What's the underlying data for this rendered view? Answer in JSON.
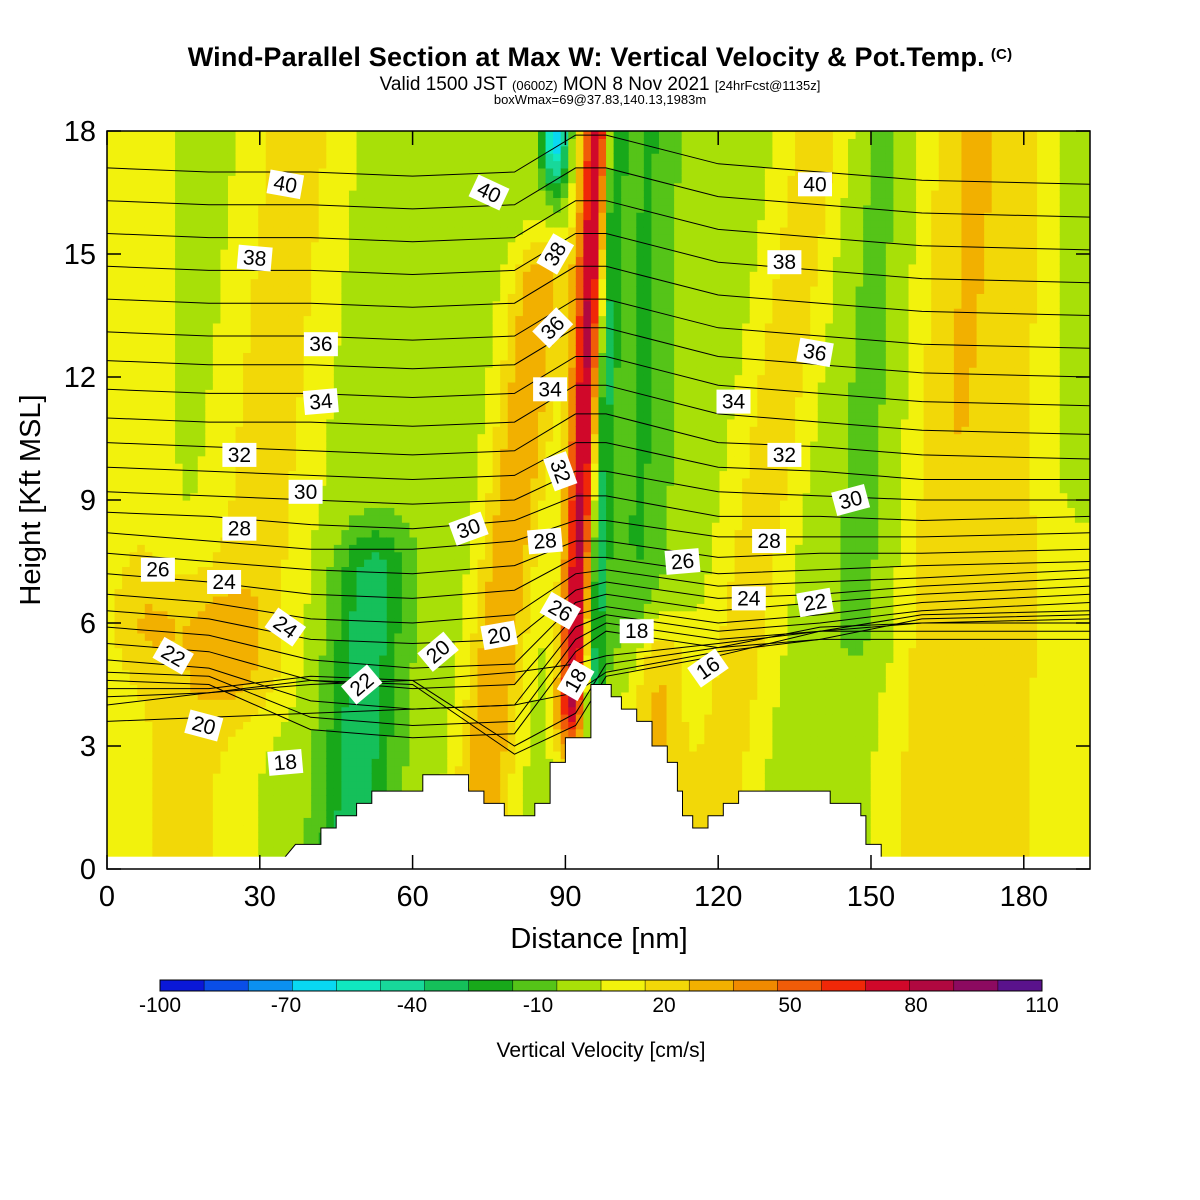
{
  "header": {
    "title": "Wind-Parallel Section at Max W: Vertical Velocity & Pot.Temp.",
    "copyright": "(C)",
    "valid_prefix": "Valid 1500 JST",
    "valid_utc": "(0600Z)",
    "valid_date": "MON 8 Nov 2021",
    "forecast": "[24hrFcst@1135z]",
    "boxmax": "boxWmax=69@37.83,140.13,1983m"
  },
  "colorbar": {
    "title": "Vertical Velocity [cm/s]",
    "tick_labels": [
      "-100",
      "-70",
      "-40",
      "-10",
      "20",
      "50",
      "80",
      "110"
    ],
    "colors": [
      "#0a18d8",
      "#0a4ee8",
      "#0b90f0",
      "#09d8f2",
      "#10e8c0",
      "#18d89a",
      "#15c05a",
      "#18a81a",
      "#55c418",
      "#a8e008",
      "#f2f20c",
      "#f2d808",
      "#f2b000",
      "#f08a00",
      "#f05c08",
      "#f02808",
      "#d0082a",
      "#b00840",
      "#8c0a60",
      "#5a128c"
    ]
  },
  "chart_data": {
    "type": "heatmap",
    "title": "Wind-Parallel Section at Max W: Vertical Velocity & Pot.Temp.",
    "xlabel": "Distance [nm]",
    "ylabel": "Height [Kft MSL]",
    "xlim": [
      0,
      193
    ],
    "ylim": [
      0,
      18
    ],
    "x_ticks": [
      0,
      30,
      60,
      90,
      120,
      150,
      180
    ],
    "y_ticks": [
      0,
      3,
      6,
      9,
      12,
      15,
      18
    ],
    "grid": false,
    "color_field": "Vertical Velocity [cm/s]",
    "color_range": [
      -110,
      110
    ],
    "contour_field": "Pot.Temp.",
    "background_w": -5,
    "w_features": [
      {
        "x": 91.5,
        "y0": 4.2,
        "y1": 18,
        "slope": 0.35,
        "amp": 85,
        "sx": 2.2
      },
      {
        "x": 95.3,
        "y0": 4.2,
        "y1": 18,
        "slope": 0.3,
        "amp": -45,
        "sx": 1.5
      },
      {
        "x": 88,
        "y0": 18,
        "y1": 18,
        "slope": 0,
        "amp": -70,
        "sx": 1.8
      },
      {
        "x": 88,
        "y0": 0,
        "y1": 1,
        "slope": 0,
        "amp": -1,
        "sx": 1
      },
      {
        "x": 72,
        "y0": 0,
        "y1": 14,
        "slope": 0.9,
        "amp": 38,
        "sx": 4
      },
      {
        "x": 48,
        "y0": 0.5,
        "y1": 7,
        "slope": 0.6,
        "amp": -35,
        "sx": 5
      },
      {
        "x": 104,
        "y0": 6,
        "y1": 18,
        "slope": 0.2,
        "amp": -18,
        "sx": 4
      },
      {
        "x": 118,
        "y0": 0,
        "y1": 18,
        "slope": 1.2,
        "amp": 22,
        "sx": 5
      },
      {
        "x": 27,
        "y0": 5,
        "y1": 18,
        "slope": 0.8,
        "amp": 22,
        "sx": 7
      },
      {
        "x": 15,
        "y0": 0,
        "y1": 6,
        "slope": 0,
        "amp": 20,
        "sx": 9
      },
      {
        "x": 175,
        "y0": 0,
        "y1": 18,
        "slope": 0.2,
        "amp": 18,
        "sx": 12
      },
      {
        "x": 160,
        "y0": 0,
        "y1": 18,
        "slope": 0.5,
        "amp": 15,
        "sx": 6
      },
      {
        "x": 148,
        "y0": 6,
        "y1": 18,
        "slope": 0.4,
        "amp": -10,
        "sx": 5
      },
      {
        "x": 190,
        "y0": 10,
        "y1": 18,
        "slope": 0,
        "amp": -12,
        "sx": 4
      },
      {
        "x": 6,
        "y0": 6,
        "y1": 18,
        "slope": 0,
        "amp": 14,
        "sx": 5
      },
      {
        "x": 108,
        "y0": 0,
        "y1": 5,
        "slope": 0,
        "amp": 30,
        "sx": 4
      }
    ],
    "terrain_profile": [
      [
        35,
        0.3
      ],
      [
        37,
        0.6
      ],
      [
        42,
        0.6
      ],
      [
        42,
        1.0
      ],
      [
        45,
        1.0
      ],
      [
        45,
        1.3
      ],
      [
        49,
        1.3
      ],
      [
        49,
        1.6
      ],
      [
        52,
        1.6
      ],
      [
        52,
        1.9
      ],
      [
        62,
        1.9
      ],
      [
        62,
        2.3
      ],
      [
        71,
        2.3
      ],
      [
        71,
        1.9
      ],
      [
        74,
        1.9
      ],
      [
        74,
        1.6
      ],
      [
        78,
        1.6
      ],
      [
        78,
        1.3
      ],
      [
        84,
        1.3
      ],
      [
        84,
        1.6
      ],
      [
        87,
        1.6
      ],
      [
        87,
        2.6
      ],
      [
        90,
        2.6
      ],
      [
        90,
        3.2
      ],
      [
        95,
        3.2
      ],
      [
        95,
        4.5
      ],
      [
        99,
        4.5
      ],
      [
        99,
        4.2
      ],
      [
        101,
        4.2
      ],
      [
        101,
        3.9
      ],
      [
        104,
        3.9
      ],
      [
        104,
        3.6
      ],
      [
        107,
        3.6
      ],
      [
        107,
        3.0
      ],
      [
        110,
        3.0
      ],
      [
        110,
        2.6
      ],
      [
        112,
        2.6
      ],
      [
        112,
        1.9
      ],
      [
        113,
        1.9
      ],
      [
        113,
        1.3
      ],
      [
        115,
        1.3
      ],
      [
        115,
        1.0
      ],
      [
        118,
        1.0
      ],
      [
        118,
        1.3
      ],
      [
        121,
        1.3
      ],
      [
        121,
        1.6
      ],
      [
        124,
        1.6
      ],
      [
        124,
        1.9
      ],
      [
        142,
        1.9
      ],
      [
        142,
        1.6
      ],
      [
        148,
        1.6
      ],
      [
        148,
        1.3
      ],
      [
        149,
        1.3
      ],
      [
        149,
        0.6
      ],
      [
        152,
        0.6
      ],
      [
        152,
        0.3
      ]
    ],
    "theta_levels": [
      16,
      17,
      18,
      19,
      20,
      21,
      22,
      23,
      24,
      25,
      26,
      27,
      28,
      29,
      30,
      31,
      32,
      33,
      34,
      35,
      36,
      37,
      38,
      39,
      40,
      41,
      42
    ],
    "theta_sparse_heights": {
      "16": [
        3.6,
        3.7,
        3.8,
        3.9,
        4.0,
        4.3,
        4.8,
        5.3,
        5.6,
        5.6,
        5.6
      ],
      "17": [
        4.0,
        4.3,
        4.5,
        4.6,
        4.8,
        5.0,
        5.2,
        5.5,
        5.8,
        5.8,
        5.8
      ],
      "18": [
        4.2,
        4.3,
        4.6,
        4.5,
        2.8,
        3.5,
        4.7,
        5.2,
        5.8,
        6.0,
        6.0
      ],
      "19": [
        4.4,
        4.4,
        4.7,
        4.6,
        3.0,
        3.8,
        5.0,
        5.4,
        5.9,
        6.0,
        6.1
      ],
      "20": [
        4.6,
        4.5,
        3.4,
        3.2,
        3.3,
        5.3,
        5.8,
        5.4,
        5.6,
        6.1,
        6.2
      ],
      "21": [
        4.8,
        4.7,
        3.7,
        3.5,
        3.6,
        5.6,
        6.0,
        5.6,
        5.8,
        6.2,
        6.3
      ],
      "22": [
        5.1,
        4.9,
        4.1,
        3.9,
        4.0,
        5.9,
        6.2,
        5.8,
        6.0,
        6.3,
        6.5
      ],
      "23": [
        5.5,
        5.3,
        4.6,
        4.4,
        4.5,
        6.2,
        6.4,
        6.0,
        6.2,
        6.5,
        6.7
      ],
      "24": [
        5.9,
        5.7,
        5.1,
        4.9,
        5.0,
        6.5,
        6.7,
        6.3,
        6.5,
        6.7,
        6.9
      ],
      "25": [
        6.3,
        6.1,
        5.6,
        5.5,
        5.6,
        6.8,
        7.0,
        6.6,
        6.7,
        6.9,
        7.1
      ],
      "26": [
        6.7,
        6.5,
        6.1,
        6.0,
        6.2,
        7.2,
        7.3,
        6.9,
        7.0,
        7.1,
        7.3
      ],
      "27": [
        7.2,
        7.0,
        6.7,
        6.6,
        6.8,
        7.6,
        7.6,
        7.2,
        7.3,
        7.4,
        7.5
      ],
      "28": [
        7.7,
        7.5,
        7.3,
        7.2,
        7.4,
        8.0,
        8.0,
        7.6,
        7.7,
        7.7,
        7.8
      ],
      "29": [
        8.2,
        8.0,
        7.8,
        7.8,
        8.0,
        8.5,
        8.5,
        8.1,
        8.1,
        8.1,
        8.2
      ],
      "30": [
        8.7,
        8.6,
        8.4,
        8.3,
        8.5,
        9.1,
        9.1,
        8.6,
        8.6,
        8.5,
        8.6
      ],
      "31": [
        9.2,
        9.1,
        9.0,
        8.9,
        9.0,
        9.7,
        9.7,
        9.2,
        9.1,
        9.0,
        9.0
      ],
      "32": [
        9.8,
        9.7,
        9.6,
        9.5,
        9.6,
        10.4,
        10.4,
        9.8,
        9.7,
        9.5,
        9.5
      ],
      "33": [
        10.4,
        10.3,
        10.2,
        10.1,
        10.2,
        11.1,
        11.1,
        10.4,
        10.3,
        10.1,
        10.0
      ],
      "34": [
        11.0,
        10.9,
        10.9,
        10.8,
        10.9,
        11.8,
        11.8,
        11.1,
        10.9,
        10.7,
        10.6
      ],
      "35": [
        11.7,
        11.6,
        11.6,
        11.5,
        11.6,
        12.5,
        12.5,
        11.8,
        11.6,
        11.4,
        11.3
      ],
      "36": [
        12.4,
        12.3,
        12.3,
        12.2,
        12.3,
        13.2,
        13.2,
        12.5,
        12.3,
        12.1,
        12.0
      ],
      "37": [
        13.1,
        13.0,
        13.0,
        12.9,
        13.0,
        13.9,
        13.9,
        13.2,
        13.0,
        12.8,
        12.7
      ],
      "38": [
        13.9,
        13.8,
        13.8,
        13.7,
        13.8,
        14.7,
        14.7,
        14.0,
        13.8,
        13.6,
        13.5
      ],
      "39": [
        14.7,
        14.6,
        14.6,
        14.5,
        14.6,
        15.5,
        15.5,
        14.8,
        14.6,
        14.4,
        14.3
      ],
      "40": [
        15.5,
        15.4,
        15.4,
        15.3,
        15.4,
        16.3,
        16.3,
        15.6,
        15.4,
        15.2,
        15.1
      ],
      "41": [
        16.3,
        16.2,
        16.2,
        16.1,
        16.2,
        17.1,
        17.1,
        16.4,
        16.2,
        16.0,
        15.9
      ],
      "42": [
        17.1,
        17.0,
        17.0,
        16.9,
        17.0,
        17.9,
        17.9,
        17.2,
        17.0,
        16.8,
        16.7
      ]
    },
    "theta_sparse_x": [
      0,
      20,
      40,
      60,
      80,
      92,
      98,
      120,
      140,
      160,
      193
    ],
    "contour_labels": [
      {
        "text": "40",
        "x": 35,
        "y": 16.7,
        "rot": 10
      },
      {
        "text": "40",
        "x": 75,
        "y": 16.5,
        "rot": 25
      },
      {
        "text": "40",
        "x": 139,
        "y": 16.7,
        "rot": 0
      },
      {
        "text": "38",
        "x": 29,
        "y": 14.9,
        "rot": 5
      },
      {
        "text": "38",
        "x": 88,
        "y": 15.0,
        "rot": -60
      },
      {
        "text": "38",
        "x": 133,
        "y": 14.8,
        "rot": 0
      },
      {
        "text": "36",
        "x": 42,
        "y": 12.8,
        "rot": 0
      },
      {
        "text": "36",
        "x": 87.5,
        "y": 13.2,
        "rot": -45
      },
      {
        "text": "36",
        "x": 139,
        "y": 12.6,
        "rot": 10
      },
      {
        "text": "34",
        "x": 42,
        "y": 11.4,
        "rot": -5
      },
      {
        "text": "34",
        "x": 87,
        "y": 11.7,
        "rot": 0
      },
      {
        "text": "34",
        "x": 123,
        "y": 11.4,
        "rot": 0
      },
      {
        "text": "32",
        "x": 26,
        "y": 10.1,
        "rot": 0
      },
      {
        "text": "32",
        "x": 89,
        "y": 9.7,
        "rot": 70
      },
      {
        "text": "32",
        "x": 133,
        "y": 10.1,
        "rot": 0
      },
      {
        "text": "30",
        "x": 39,
        "y": 9.2,
        "rot": 0
      },
      {
        "text": "30",
        "x": 71,
        "y": 8.3,
        "rot": -20
      },
      {
        "text": "30",
        "x": 146,
        "y": 9.0,
        "rot": -15
      },
      {
        "text": "28",
        "x": 26,
        "y": 8.3,
        "rot": 0
      },
      {
        "text": "28",
        "x": 86,
        "y": 8.0,
        "rot": -5
      },
      {
        "text": "28",
        "x": 130,
        "y": 8.0,
        "rot": 0
      },
      {
        "text": "26",
        "x": 10,
        "y": 7.3,
        "rot": 0
      },
      {
        "text": "26",
        "x": 89,
        "y": 6.3,
        "rot": 30
      },
      {
        "text": "26",
        "x": 113,
        "y": 7.5,
        "rot": -5
      },
      {
        "text": "24",
        "x": 23,
        "y": 7.0,
        "rot": 0
      },
      {
        "text": "24",
        "x": 35,
        "y": 5.9,
        "rot": 35
      },
      {
        "text": "24",
        "x": 126,
        "y": 6.6,
        "rot": 0
      },
      {
        "text": "22",
        "x": 13,
        "y": 5.2,
        "rot": 30
      },
      {
        "text": "22",
        "x": 50,
        "y": 4.5,
        "rot": -40
      },
      {
        "text": "22",
        "x": 139,
        "y": 6.5,
        "rot": -10
      },
      {
        "text": "20",
        "x": 19,
        "y": 3.5,
        "rot": 15
      },
      {
        "text": "20",
        "x": 65,
        "y": 5.3,
        "rot": -40
      },
      {
        "text": "20",
        "x": 77,
        "y": 5.7,
        "rot": -10
      },
      {
        "text": "18",
        "x": 35,
        "y": 2.6,
        "rot": -5
      },
      {
        "text": "18",
        "x": 92,
        "y": 4.6,
        "rot": -60
      },
      {
        "text": "18",
        "x": 104,
        "y": 5.8,
        "rot": 0
      },
      {
        "text": "16",
        "x": 118,
        "y": 4.9,
        "rot": -35
      }
    ]
  }
}
